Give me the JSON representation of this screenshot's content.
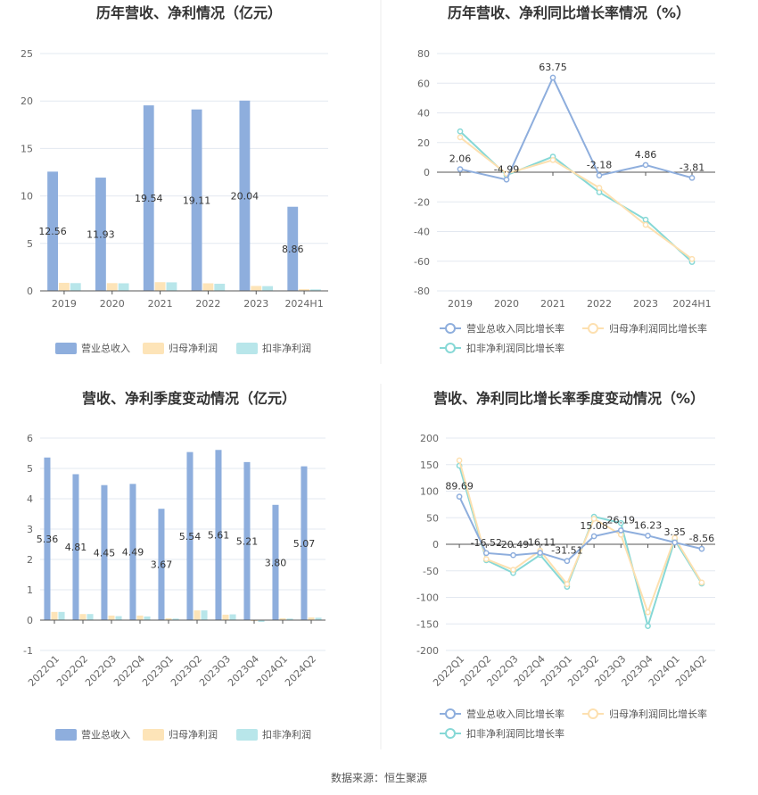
{
  "source": "数据来源：恒生聚源",
  "colors": {
    "revenue": "#8eaedd",
    "parent_profit": "#fde4b8",
    "deducted_profit": "#b8e6ea",
    "revenue_line": "#8eaedd",
    "parent_line": "#fde0b0",
    "deducted_line": "#86d8d6"
  },
  "chart_data": [
    {
      "id": "annual-bar",
      "type": "bar",
      "title": "历年营收、净利情况（亿元）",
      "categories": [
        "2019",
        "2020",
        "2021",
        "2022",
        "2023",
        "2024H1"
      ],
      "ylim": [
        0,
        25
      ],
      "yticks": [
        0,
        5,
        10,
        15,
        20,
        25
      ],
      "series": [
        {
          "name": "营业总收入",
          "values": [
            12.56,
            11.93,
            19.54,
            19.11,
            20.04,
            8.86
          ],
          "labels": [
            "12.56",
            "11.93",
            "19.54",
            "19.11",
            "20.04",
            "8.86"
          ]
        },
        {
          "name": "归母净利润",
          "values": [
            0.85,
            0.82,
            0.92,
            0.8,
            0.52,
            0.18
          ]
        },
        {
          "name": "扣非净利润",
          "values": [
            0.82,
            0.8,
            0.9,
            0.75,
            0.5,
            0.16
          ]
        }
      ]
    },
    {
      "id": "annual-line",
      "type": "line",
      "title": "历年营收、净利同比增长率情况（%）",
      "categories": [
        "2019",
        "2020",
        "2021",
        "2022",
        "2023",
        "2024H1"
      ],
      "ylim": [
        -80,
        80
      ],
      "yticks": [
        -80,
        -60,
        -40,
        -20,
        0,
        20,
        40,
        60,
        80
      ],
      "series": [
        {
          "name": "营业总收入同比增长率",
          "values": [
            2.06,
            -4.99,
            63.75,
            -2.18,
            4.86,
            -3.81
          ],
          "labels": [
            "2.06",
            "-4.99",
            "63.75",
            "-2.18",
            "4.86",
            "-3.81"
          ]
        },
        {
          "name": "归母净利润同比增长率",
          "values": [
            23.5,
            -1.0,
            8.2,
            -10.5,
            -35.5,
            -58.5
          ]
        },
        {
          "name": "扣非净利润同比增长率",
          "values": [
            27.5,
            -2.0,
            10.5,
            -13.5,
            -32.0,
            -60.5
          ]
        }
      ]
    },
    {
      "id": "quarter-bar",
      "type": "bar",
      "title": "营收、净利季度变动情况（亿元）",
      "categories": [
        "2022Q1",
        "2022Q2",
        "2022Q3",
        "2022Q4",
        "2023Q1",
        "2023Q2",
        "2023Q3",
        "2023Q4",
        "2024Q1",
        "2024Q2"
      ],
      "ylim": [
        -1,
        6
      ],
      "yticks": [
        -1,
        0,
        1,
        2,
        3,
        4,
        5,
        6
      ],
      "series": [
        {
          "name": "营业总收入",
          "values": [
            5.36,
            4.81,
            4.45,
            4.49,
            3.67,
            5.54,
            5.61,
            5.21,
            3.8,
            5.07
          ],
          "labels": [
            "5.36",
            "4.81",
            "4.45",
            "4.49",
            "3.67",
            "5.54",
            "5.61",
            "5.21",
            "3.80",
            "5.07"
          ]
        },
        {
          "name": "归母净利润",
          "values": [
            0.27,
            0.2,
            0.15,
            0.15,
            0.06,
            0.32,
            0.18,
            -0.03,
            0.06,
            0.09
          ]
        },
        {
          "name": "扣非净利润",
          "values": [
            0.27,
            0.2,
            0.13,
            0.12,
            0.05,
            0.32,
            0.19,
            -0.06,
            0.05,
            0.08
          ]
        }
      ]
    },
    {
      "id": "quarter-line",
      "type": "line",
      "title": "营收、净利同比增长率季度变动情况（%）",
      "categories": [
        "2022Q1",
        "2022Q2",
        "2022Q3",
        "2022Q4",
        "2023Q1",
        "2023Q2",
        "2023Q3",
        "2023Q4",
        "2024Q1",
        "2024Q2"
      ],
      "ylim": [
        -200,
        200
      ],
      "yticks": [
        -200,
        -150,
        -100,
        -50,
        0,
        50,
        100,
        150,
        200
      ],
      "series": [
        {
          "name": "营业总收入同比增长率",
          "values": [
            89.69,
            -16.52,
            -20.49,
            -16.11,
            -31.51,
            15.08,
            26.19,
            16.23,
            3.35,
            -8.56
          ],
          "labels": [
            "89.69",
            "-16.52",
            "-20.49",
            "-16.11",
            "-31.51",
            "15.08",
            "26.19",
            "16.23",
            "3.35",
            "-8.56"
          ]
        },
        {
          "name": "归母净利润同比增长率",
          "values": [
            158,
            -28,
            -48,
            -12,
            -75,
            48,
            18,
            -128,
            12,
            -72
          ]
        },
        {
          "name": "扣非净利润同比增长率",
          "values": [
            148,
            -30,
            -54,
            -20,
            -80,
            52,
            40,
            -154,
            8,
            -74
          ]
        }
      ]
    }
  ]
}
